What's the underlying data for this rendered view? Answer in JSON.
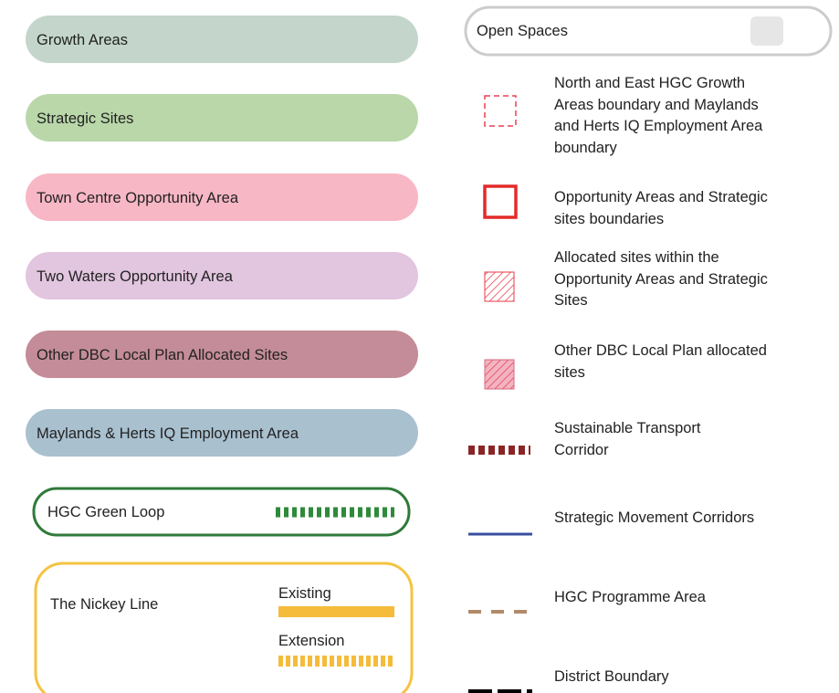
{
  "left_items": [
    {
      "label": "Growth Areas"
    },
    {
      "label": "Strategic Sites"
    },
    {
      "label": "Town Centre Opportunity Area"
    },
    {
      "label": "Two Waters Opportunity Area"
    },
    {
      "label": "Other DBC Local Plan Allocated Sites"
    },
    {
      "label": "Maylands & Herts IQ Employment Area"
    },
    {
      "label": "HGC Green Loop"
    }
  ],
  "nickey_line": {
    "label": "The Nickey Line",
    "existing": "Existing",
    "extension": "Extension"
  },
  "open_spaces": {
    "label": "Open Spaces"
  },
  "right_items": [
    {
      "lines": [
        "North and East HGC Growth",
        "Areas boundary and Maylands",
        "and Herts IQ Employment Area",
        "boundary"
      ]
    },
    {
      "lines": [
        "Opportunity Areas and Strategic",
        "sites boundaries"
      ]
    },
    {
      "lines": [
        "Allocated sites within the",
        "Opportunity Areas and Strategic",
        "Sites"
      ]
    },
    {
      "lines": [
        "Other DBC Local Plan allocated",
        "sites"
      ]
    },
    {
      "lines": [
        "Sustainable Transport",
        "Corridor"
      ]
    },
    {
      "lines": [
        "Strategic Movement Corridors"
      ]
    },
    {
      "lines": [
        "HGC Programme Area"
      ]
    },
    {
      "lines": [
        "District Boundary"
      ]
    }
  ]
}
